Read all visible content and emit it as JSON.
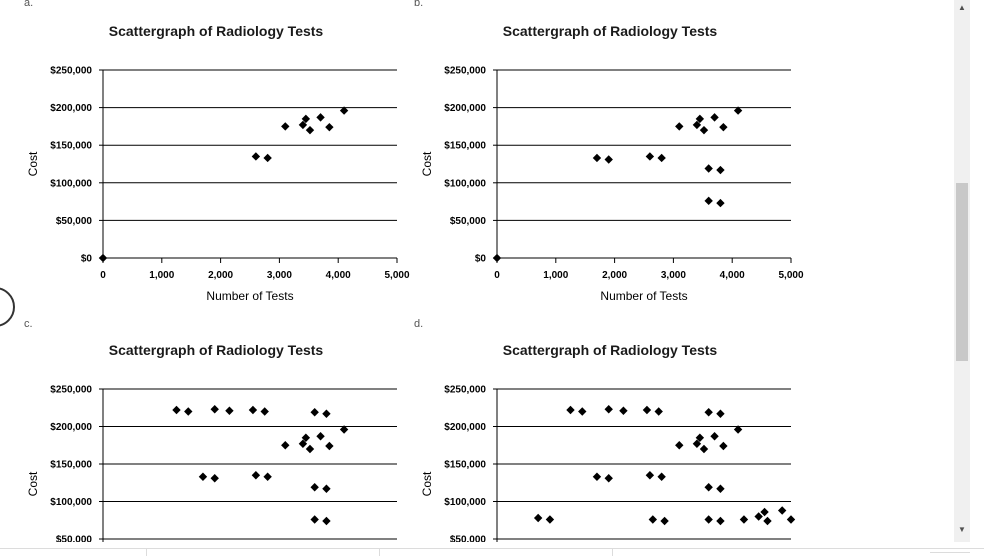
{
  "panels": [
    {
      "label": "a.",
      "title": "Scattergraph of Radiology Tests",
      "ylabel": "Cost",
      "xlabel": "Number of Tests"
    },
    {
      "label": "b.",
      "title": "Scattergraph of Radiology Tests",
      "ylabel": "Cost",
      "xlabel": "Number of Tests"
    },
    {
      "label": "c.",
      "title": "Scattergraph of Radiology Tests",
      "ylabel": "Cost",
      "xlabel": ""
    },
    {
      "label": "d.",
      "title": "Scattergraph of Radiology Tests",
      "ylabel": "Cost",
      "xlabel": ""
    }
  ],
  "chart_data": [
    {
      "type": "scatter",
      "title": "Scattergraph of Radiology Tests",
      "xlabel": "Number of Tests",
      "ylabel": "Cost",
      "xlim": [
        0,
        5000
      ],
      "ylim": [
        0,
        250000
      ],
      "xticks": [
        "0",
        "1,000",
        "2,000",
        "3,000",
        "4,000",
        "5,000"
      ],
      "yticks": [
        "$0",
        "$50,000",
        "$100,000",
        "$150,000",
        "$200,000",
        "$250,000"
      ],
      "points": [
        [
          0,
          0
        ],
        [
          2600,
          135000
        ],
        [
          2800,
          133000
        ],
        [
          3100,
          175000
        ],
        [
          3400,
          177000
        ],
        [
          3450,
          185000
        ],
        [
          3520,
          170000
        ],
        [
          3700,
          187000
        ],
        [
          3850,
          174000
        ],
        [
          4100,
          196000
        ]
      ]
    },
    {
      "type": "scatter",
      "title": "Scattergraph of Radiology Tests",
      "xlabel": "Number of Tests",
      "ylabel": "Cost",
      "xlim": [
        0,
        5000
      ],
      "ylim": [
        0,
        250000
      ],
      "xticks": [
        "0",
        "1,000",
        "2,000",
        "3,000",
        "4,000",
        "5,000"
      ],
      "yticks": [
        "$0",
        "$50,000",
        "$100,000",
        "$150,000",
        "$200,000",
        "$250,000"
      ],
      "points": [
        [
          0,
          0
        ],
        [
          1700,
          133000
        ],
        [
          1900,
          131000
        ],
        [
          2600,
          135000
        ],
        [
          2800,
          133000
        ],
        [
          3100,
          175000
        ],
        [
          3400,
          177000
        ],
        [
          3450,
          185000
        ],
        [
          3520,
          170000
        ],
        [
          3600,
          119000
        ],
        [
          3600,
          76000
        ],
        [
          3700,
          187000
        ],
        [
          3800,
          117000
        ],
        [
          3800,
          73000
        ],
        [
          3850,
          174000
        ],
        [
          4100,
          196000
        ]
      ]
    },
    {
      "type": "scatter",
      "title": "Scattergraph of Radiology Tests",
      "xlabel": "",
      "ylabel": "Cost",
      "xlim": [
        0,
        5000
      ],
      "ylim": [
        50000,
        250000
      ],
      "yticks": [
        "$50,000",
        "$100,000",
        "$150,000",
        "$200,000",
        "$250,000"
      ],
      "points": [
        [
          1250,
          222000
        ],
        [
          1450,
          220000
        ],
        [
          1900,
          223000
        ],
        [
          2150,
          221000
        ],
        [
          2550,
          222000
        ],
        [
          2750,
          220000
        ],
        [
          1700,
          133000
        ],
        [
          1900,
          131000
        ],
        [
          2600,
          135000
        ],
        [
          2800,
          133000
        ],
        [
          3100,
          175000
        ],
        [
          3400,
          177000
        ],
        [
          3450,
          185000
        ],
        [
          3520,
          170000
        ],
        [
          3600,
          219000
        ],
        [
          3800,
          217000
        ],
        [
          3600,
          119000
        ],
        [
          3800,
          117000
        ],
        [
          3600,
          76000
        ],
        [
          3800,
          74000
        ],
        [
          3700,
          187000
        ],
        [
          3850,
          174000
        ],
        [
          4100,
          196000
        ]
      ]
    },
    {
      "type": "scatter",
      "title": "Scattergraph of Radiology Tests",
      "xlabel": "",
      "ylabel": "Cost",
      "xlim": [
        0,
        5000
      ],
      "ylim": [
        50000,
        250000
      ],
      "yticks": [
        "$50,000",
        "$100,000",
        "$150,000",
        "$200,000",
        "$250,000"
      ],
      "points": [
        [
          1250,
          222000
        ],
        [
          1450,
          220000
        ],
        [
          1900,
          223000
        ],
        [
          2150,
          221000
        ],
        [
          2550,
          222000
        ],
        [
          2750,
          220000
        ],
        [
          1700,
          133000
        ],
        [
          1900,
          131000
        ],
        [
          2600,
          135000
        ],
        [
          2800,
          133000
        ],
        [
          3100,
          175000
        ],
        [
          3400,
          177000
        ],
        [
          3450,
          185000
        ],
        [
          3520,
          170000
        ],
        [
          3600,
          219000
        ],
        [
          3800,
          217000
        ],
        [
          3600,
          119000
        ],
        [
          3800,
          117000
        ],
        [
          2650,
          76000
        ],
        [
          2850,
          74000
        ],
        [
          3600,
          76000
        ],
        [
          3800,
          74000
        ],
        [
          3700,
          187000
        ],
        [
          3850,
          174000
        ],
        [
          4100,
          196000
        ],
        [
          700,
          78000
        ],
        [
          900,
          76000
        ],
        [
          4200,
          76000
        ],
        [
          4450,
          80000
        ],
        [
          4550,
          86000
        ],
        [
          4600,
          74000
        ],
        [
          4850,
          88000
        ],
        [
          5000,
          76000
        ]
      ]
    }
  ]
}
